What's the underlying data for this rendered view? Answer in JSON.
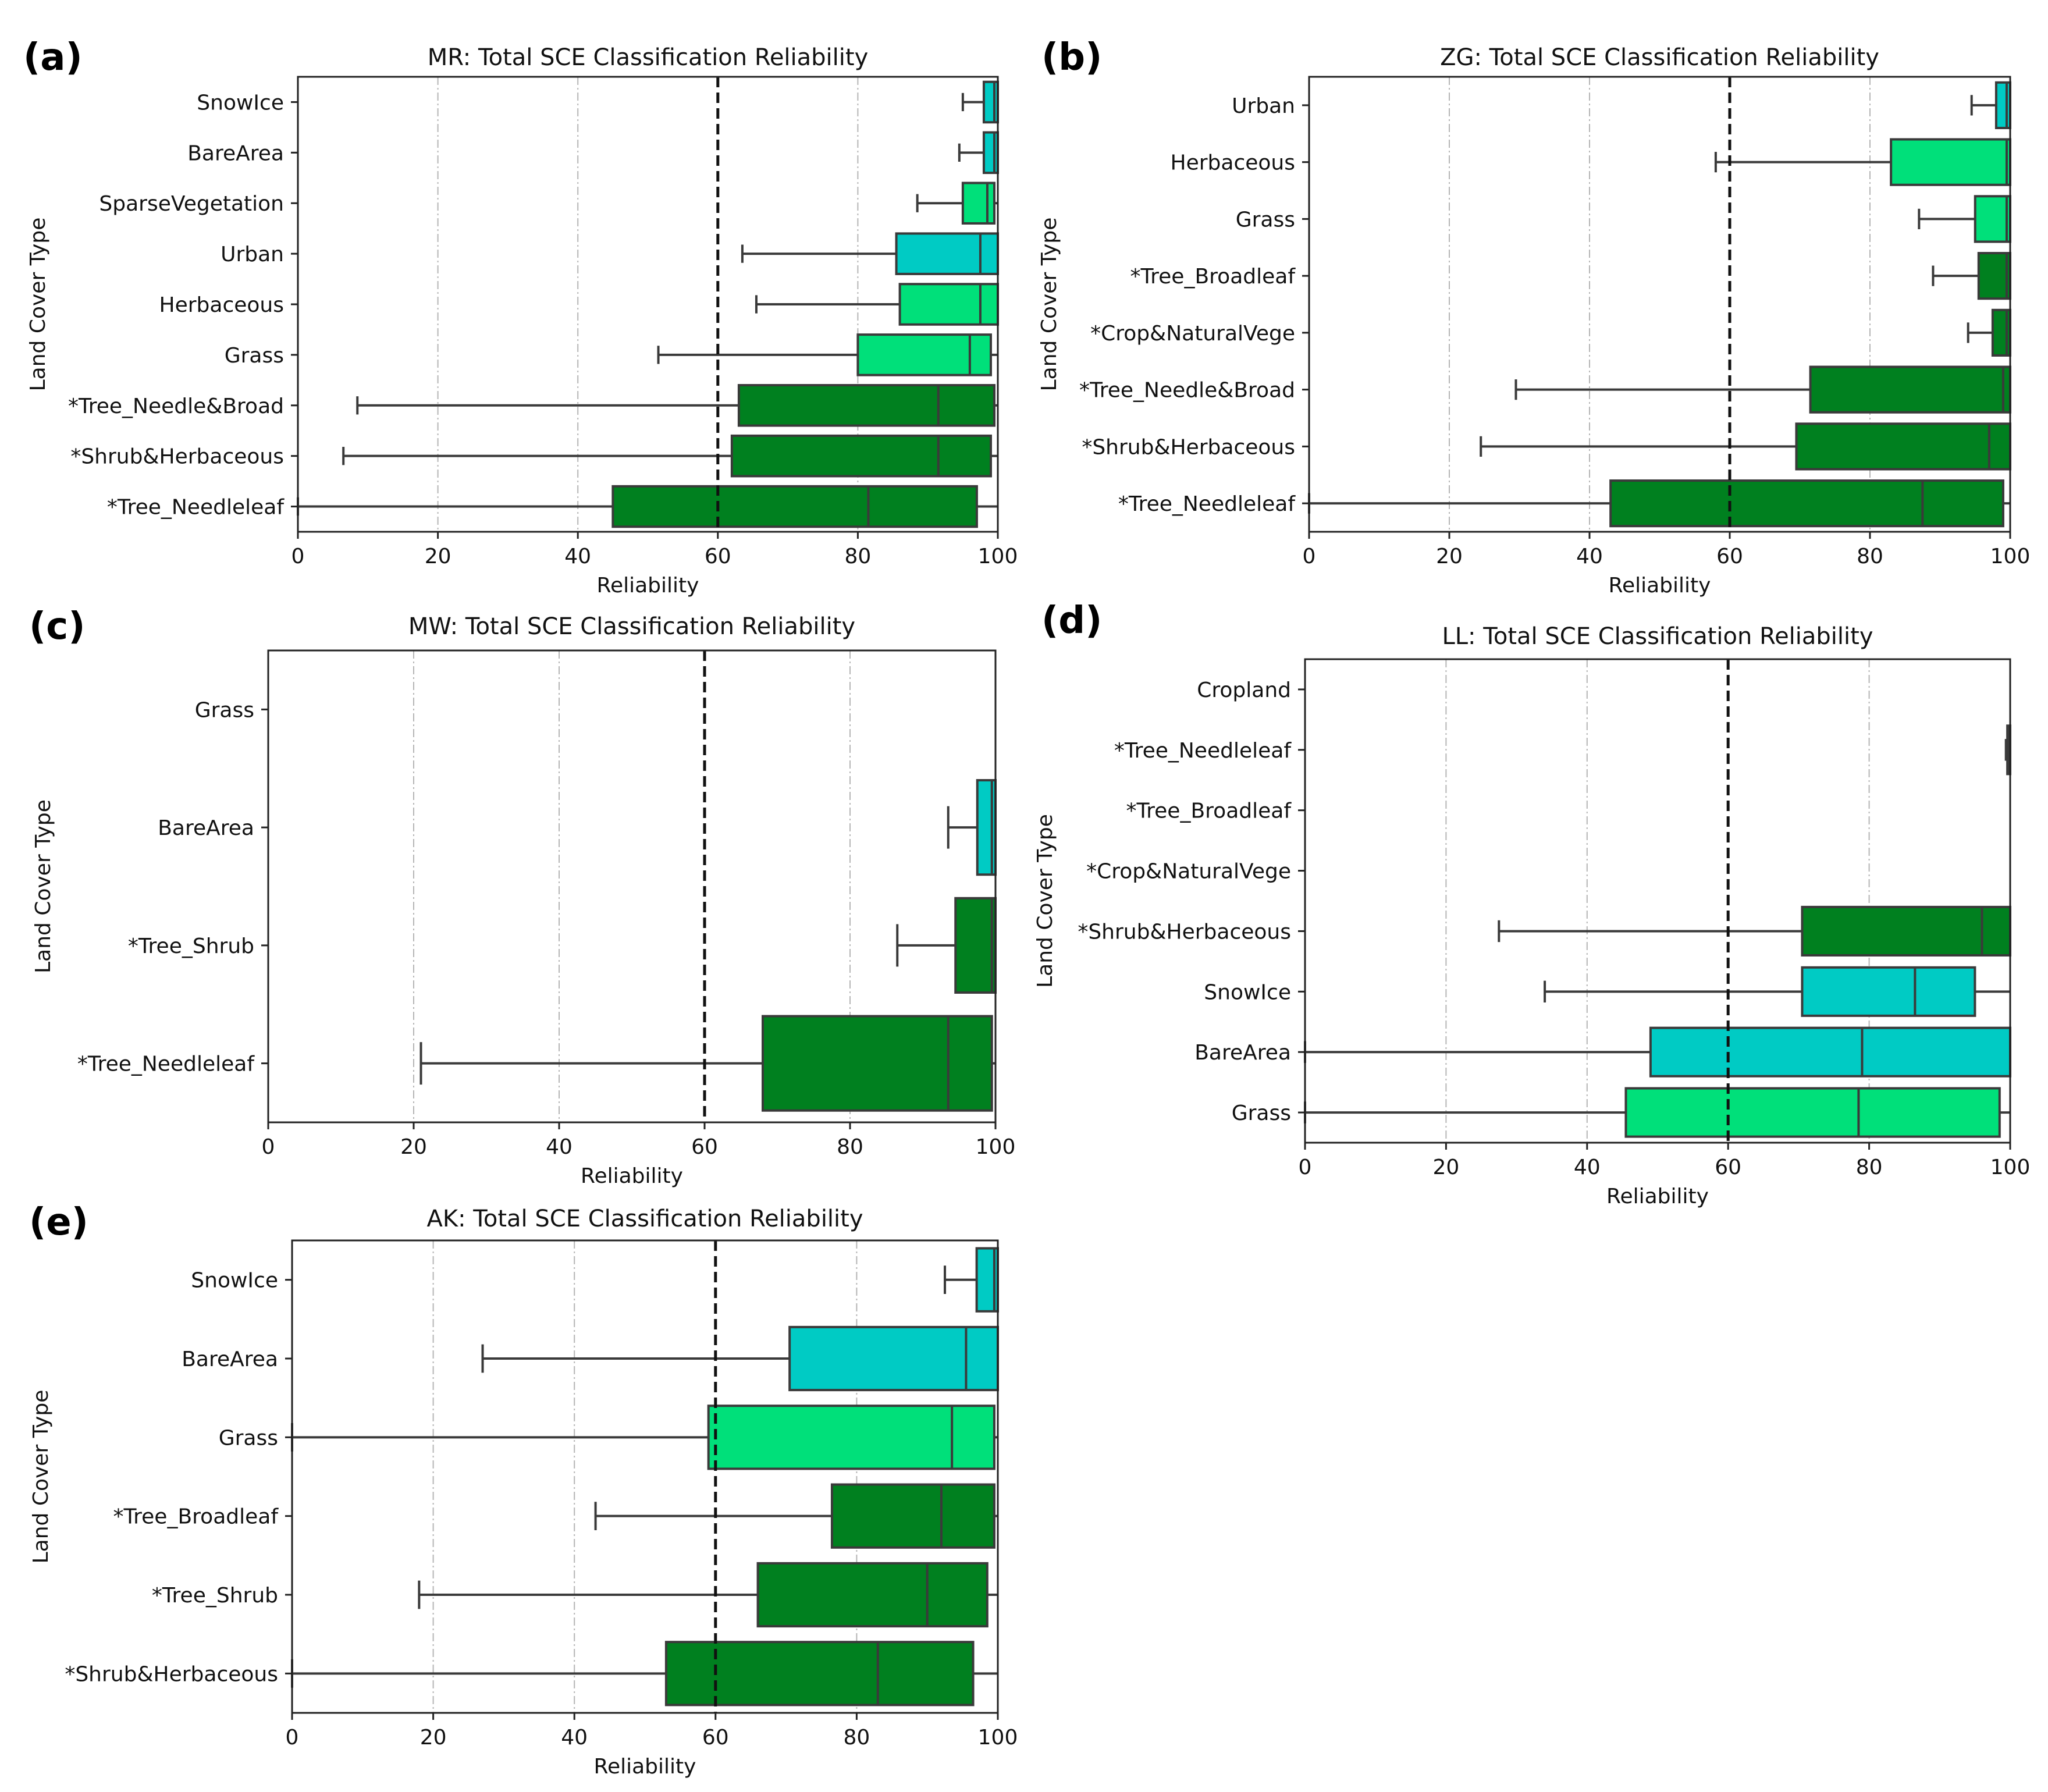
{
  "figure": {
    "ref_line": 60,
    "grid_lines": [
      20,
      40,
      80
    ],
    "colors": {
      "dark_green": "#00801f",
      "light_green": "#00e07a",
      "turquoise": "#00cbc4",
      "whisker": "#3a3a3a",
      "axis": "#222222",
      "grid": "#b5b5b5"
    }
  },
  "chart_data": [
    {
      "panel": "(a)",
      "type": "boxplot",
      "orientation": "horizontal",
      "title": "MR: Total SCE Classification Reliability",
      "xlabel": "Reliability",
      "ylabel": "Land Cover Type",
      "xlim": [
        0,
        100
      ],
      "xticks": [
        "0",
        "20",
        "40",
        "60",
        "80",
        "100"
      ],
      "categories": [
        "SnowIce",
        "BareArea",
        "SparseVegetation",
        "Urban",
        "Herbaceous",
        "Grass",
        "*Tree_Needle&Broad",
        "*Shrub&Herbaceous",
        "*Tree_Needleleaf"
      ],
      "boxes": [
        {
          "label": "SnowIce",
          "color": "turquoise",
          "whisker_low": 95,
          "q1": 98,
          "median": 99.5,
          "q3": 100,
          "whisker_high": 100
        },
        {
          "label": "BareArea",
          "color": "turquoise",
          "whisker_low": 94.5,
          "q1": 98,
          "median": 99.5,
          "q3": 100,
          "whisker_high": 100
        },
        {
          "label": "SparseVegetation",
          "color": "light_green",
          "whisker_low": 88.5,
          "q1": 95,
          "median": 98.5,
          "q3": 99.5,
          "whisker_high": 100
        },
        {
          "label": "Urban",
          "color": "turquoise",
          "whisker_low": 63.5,
          "q1": 85.5,
          "median": 97.5,
          "q3": 100,
          "whisker_high": 100
        },
        {
          "label": "Herbaceous",
          "color": "light_green",
          "whisker_low": 65.5,
          "q1": 86,
          "median": 97.5,
          "q3": 100,
          "whisker_high": 100
        },
        {
          "label": "Grass",
          "color": "light_green",
          "whisker_low": 51.5,
          "q1": 80,
          "median": 96,
          "q3": 99,
          "whisker_high": 100
        },
        {
          "label": "*Tree_Needle&Broad",
          "color": "dark_green",
          "whisker_low": 8.5,
          "q1": 63,
          "median": 91.5,
          "q3": 99.5,
          "whisker_high": 100
        },
        {
          "label": "*Shrub&Herbaceous",
          "color": "dark_green",
          "whisker_low": 6.5,
          "q1": 62,
          "median": 91.5,
          "q3": 99,
          "whisker_high": 100
        },
        {
          "label": "*Tree_Needleleaf",
          "color": "dark_green",
          "whisker_low": 0,
          "q1": 45,
          "median": 81.5,
          "q3": 97,
          "whisker_high": 100
        }
      ]
    },
    {
      "panel": "(b)",
      "type": "boxplot",
      "orientation": "horizontal",
      "title": "ZG: Total SCE Classification Reliability",
      "xlabel": "Reliability",
      "ylabel": "Land Cover Type",
      "xlim": [
        0,
        100
      ],
      "xticks": [
        "0",
        "20",
        "40",
        "60",
        "80",
        "100"
      ],
      "categories": [
        "Urban",
        "Herbaceous",
        "Grass",
        "*Tree_Broadleaf",
        "*Crop&NaturalVege",
        "*Tree_Needle&Broad",
        "*Shrub&Herbaceous",
        "*Tree_Needleleaf"
      ],
      "boxes": [
        {
          "label": "Urban",
          "color": "turquoise",
          "whisker_low": 94.5,
          "q1": 98,
          "median": 99.5,
          "q3": 100,
          "whisker_high": 100
        },
        {
          "label": "Herbaceous",
          "color": "light_green",
          "whisker_low": 58,
          "q1": 83,
          "median": 99.5,
          "q3": 100,
          "whisker_high": 100
        },
        {
          "label": "Grass",
          "color": "light_green",
          "whisker_low": 87,
          "q1": 95,
          "median": 99.5,
          "q3": 100,
          "whisker_high": 100
        },
        {
          "label": "*Tree_Broadleaf",
          "color": "dark_green",
          "whisker_low": 89,
          "q1": 95.5,
          "median": 99.5,
          "q3": 100,
          "whisker_high": 100
        },
        {
          "label": "*Crop&NaturalVege",
          "color": "dark_green",
          "whisker_low": 94,
          "q1": 97.5,
          "median": 99.5,
          "q3": 100,
          "whisker_high": 100
        },
        {
          "label": "*Tree_Needle&Broad",
          "color": "dark_green",
          "whisker_low": 29.5,
          "q1": 71.5,
          "median": 99,
          "q3": 100,
          "whisker_high": 100
        },
        {
          "label": "*Shrub&Herbaceous",
          "color": "dark_green",
          "whisker_low": 24.5,
          "q1": 69.5,
          "median": 97,
          "q3": 100,
          "whisker_high": 100
        },
        {
          "label": "*Tree_Needleleaf",
          "color": "dark_green",
          "whisker_low": 0,
          "q1": 43,
          "median": 87.5,
          "q3": 99,
          "whisker_high": 100
        }
      ]
    },
    {
      "panel": "(c)",
      "type": "boxplot",
      "orientation": "horizontal",
      "title": "MW: Total SCE Classification Reliability",
      "xlabel": "Reliability",
      "ylabel": "Land Cover Type",
      "xlim": [
        0,
        100
      ],
      "xticks": [
        "0",
        "20",
        "40",
        "60",
        "80",
        "100"
      ],
      "categories": [
        "Grass",
        "BareArea",
        "*Tree_Shrub",
        "*Tree_Needleleaf"
      ],
      "boxes": [
        {
          "label": "Grass",
          "color": "light_green",
          "whisker_low": 100,
          "q1": 100,
          "median": 100,
          "q3": 100,
          "whisker_high": 100
        },
        {
          "label": "BareArea",
          "color": "turquoise",
          "whisker_low": 93.5,
          "q1": 97.5,
          "median": 99.5,
          "q3": 100,
          "whisker_high": 100
        },
        {
          "label": "*Tree_Shrub",
          "color": "dark_green",
          "whisker_low": 86.5,
          "q1": 94.5,
          "median": 99.5,
          "q3": 100,
          "whisker_high": 100
        },
        {
          "label": "*Tree_Needleleaf",
          "color": "dark_green",
          "whisker_low": 21,
          "q1": 68,
          "median": 93.5,
          "q3": 99.5,
          "whisker_high": 100
        }
      ]
    },
    {
      "panel": "(d)",
      "type": "boxplot",
      "orientation": "horizontal",
      "title": "LL: Total SCE Classification Reliability",
      "xlabel": "Reliability",
      "ylabel": "Land Cover Type",
      "xlim": [
        0,
        100
      ],
      "xticks": [
        "0",
        "20",
        "40",
        "60",
        "80",
        "100"
      ],
      "categories": [
        "Cropland",
        "*Tree_Needleleaf",
        "*Tree_Broadleaf",
        "*Crop&NaturalVege",
        "*Shrub&Herbaceous",
        "SnowIce",
        "BareArea",
        "Grass"
      ],
      "boxes": [
        {
          "label": "Cropland",
          "color": "light_green",
          "whisker_low": 100,
          "q1": 100,
          "median": 100,
          "q3": 100,
          "whisker_high": 100
        },
        {
          "label": "*Tree_Needleleaf",
          "color": "dark_green",
          "whisker_low": 99.4,
          "q1": 99.6,
          "median": 99.8,
          "q3": 100,
          "whisker_high": 100
        },
        {
          "label": "*Tree_Broadleaf",
          "color": "dark_green",
          "whisker_low": 100,
          "q1": 100,
          "median": 100,
          "q3": 100,
          "whisker_high": 100
        },
        {
          "label": "*Crop&NaturalVege",
          "color": "dark_green",
          "whisker_low": 100,
          "q1": 100,
          "median": 100,
          "q3": 100,
          "whisker_high": 100
        },
        {
          "label": "*Shrub&Herbaceous",
          "color": "dark_green",
          "whisker_low": 27.5,
          "q1": 70.5,
          "median": 96,
          "q3": 100,
          "whisker_high": 100
        },
        {
          "label": "SnowIce",
          "color": "turquoise",
          "whisker_low": 34,
          "q1": 70.5,
          "median": 86.5,
          "q3": 95,
          "whisker_high": 100
        },
        {
          "label": "BareArea",
          "color": "turquoise",
          "whisker_low": 0,
          "q1": 49,
          "median": 79,
          "q3": 100,
          "whisker_high": 100
        },
        {
          "label": "Grass",
          "color": "light_green",
          "whisker_low": 0,
          "q1": 45.5,
          "median": 78.5,
          "q3": 98.5,
          "whisker_high": 100
        }
      ]
    },
    {
      "panel": "(e)",
      "type": "boxplot",
      "orientation": "horizontal",
      "title": "AK: Total SCE Classification Reliability",
      "xlabel": "Reliability",
      "ylabel": "Land Cover Type",
      "xlim": [
        0,
        100
      ],
      "xticks": [
        "0",
        "20",
        "40",
        "60",
        "80",
        "100"
      ],
      "categories": [
        "SnowIce",
        "BareArea",
        "Grass",
        "*Tree_Broadleaf",
        "*Tree_Shrub",
        "*Shrub&Herbaceous"
      ],
      "boxes": [
        {
          "label": "SnowIce",
          "color": "turquoise",
          "whisker_low": 92.5,
          "q1": 97,
          "median": 99.5,
          "q3": 100,
          "whisker_high": 100
        },
        {
          "label": "BareArea",
          "color": "turquoise",
          "whisker_low": 27,
          "q1": 70.5,
          "median": 95.5,
          "q3": 100,
          "whisker_high": 100
        },
        {
          "label": "Grass",
          "color": "light_green",
          "whisker_low": 0,
          "q1": 59,
          "median": 93.5,
          "q3": 99.5,
          "whisker_high": 100
        },
        {
          "label": "*Tree_Broadleaf",
          "color": "dark_green",
          "whisker_low": 43,
          "q1": 76.5,
          "median": 92,
          "q3": 99.5,
          "whisker_high": 100
        },
        {
          "label": "*Tree_Shrub",
          "color": "dark_green",
          "whisker_low": 18,
          "q1": 66,
          "median": 90,
          "q3": 98.5,
          "whisker_high": 100
        },
        {
          "label": "*Shrub&Herbaceous",
          "color": "dark_green",
          "whisker_low": 0,
          "q1": 53,
          "median": 83,
          "q3": 96.5,
          "whisker_high": 100
        }
      ]
    }
  ]
}
